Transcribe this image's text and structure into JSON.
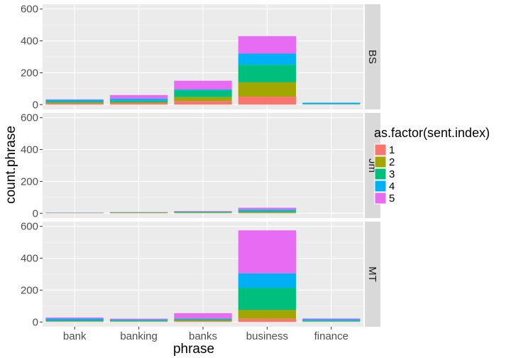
{
  "chart_data": {
    "type": "bar",
    "stacked": true,
    "faceted": "rows",
    "xlabel": "phrase",
    "ylabel": "count.phrase",
    "categories": [
      "bank",
      "banking",
      "banks",
      "business",
      "finance"
    ],
    "ylim": [
      0,
      600
    ],
    "yticks": [
      0,
      200,
      400,
      600
    ],
    "grid": true,
    "legend": {
      "title": "as.factor(sent.index)",
      "position": "right",
      "entries": [
        "1",
        "2",
        "3",
        "4",
        "5"
      ]
    },
    "colors": [
      "#F8766D",
      "#A3A500",
      "#00BF7D",
      "#00B0F6",
      "#E76BF3"
    ],
    "panels": [
      {
        "label": "BS",
        "series": [
          {
            "name": "1",
            "values": [
              8,
              10,
              22,
              50,
              1
            ]
          },
          {
            "name": "2",
            "values": [
              5,
              5,
              25,
              90,
              1
            ]
          },
          {
            "name": "3",
            "values": [
              8,
              10,
              43,
              110,
              2
            ]
          },
          {
            "name": "4",
            "values": [
              9,
              12,
              5,
              70,
              8
            ]
          },
          {
            "name": "5",
            "values": [
              3,
              23,
              55,
              110,
              0
            ]
          }
        ]
      },
      {
        "label": "Jm",
        "series": [
          {
            "name": "1",
            "values": [
              1,
              1,
              2,
              2,
              0
            ]
          },
          {
            "name": "2",
            "values": [
              1,
              3,
              3,
              5,
              0
            ]
          },
          {
            "name": "3",
            "values": [
              1,
              2,
              3,
              8,
              0
            ]
          },
          {
            "name": "4",
            "values": [
              1,
              1,
              3,
              8,
              0
            ]
          },
          {
            "name": "5",
            "values": [
              1,
              1,
              3,
              12,
              0
            ]
          }
        ]
      },
      {
        "label": "MT",
        "series": [
          {
            "name": "1",
            "values": [
              2,
              2,
              5,
              20,
              2
            ]
          },
          {
            "name": "2",
            "values": [
              3,
              3,
              5,
              55,
              2
            ]
          },
          {
            "name": "3",
            "values": [
              3,
              4,
              8,
              140,
              3
            ]
          },
          {
            "name": "4",
            "values": [
              13,
              7,
              3,
              90,
              10
            ]
          },
          {
            "name": "5",
            "values": [
              7,
              5,
              34,
              270,
              5
            ]
          }
        ]
      }
    ]
  }
}
